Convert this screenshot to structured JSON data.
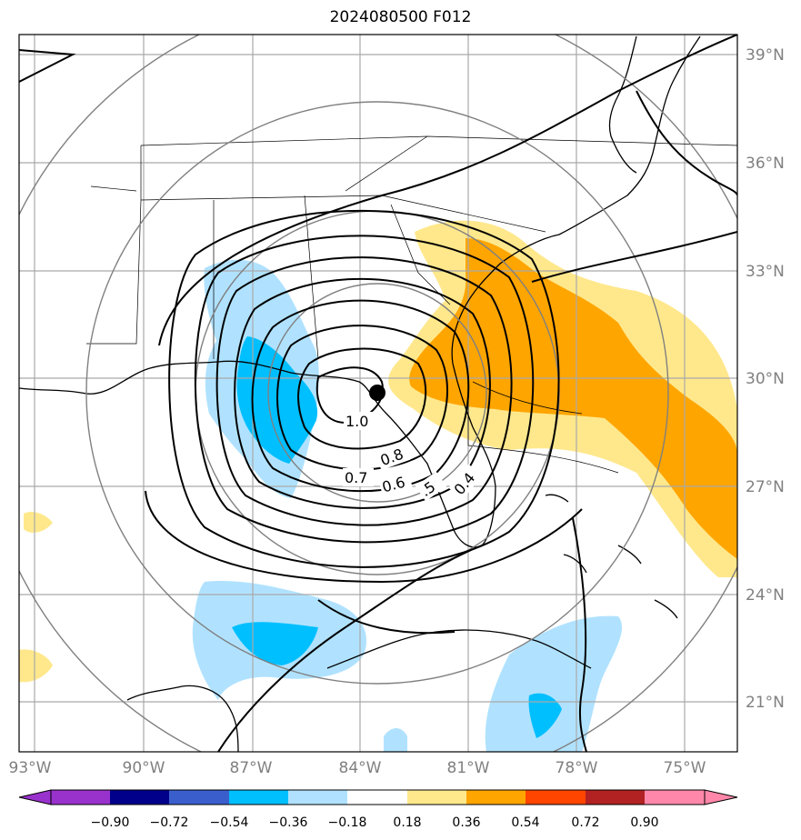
{
  "title": "2024080500 F012",
  "map": {
    "lon_labels": [
      "93°W",
      "90°W",
      "87°W",
      "84°W",
      "81°W",
      "78°W",
      "75°W"
    ],
    "lat_labels": [
      "39°N",
      "36°N",
      "33°N",
      "30°N",
      "27°N",
      "24°N",
      "21°N"
    ],
    "contour_labels": [
      "1.0",
      "0.8",
      "0.7",
      "0.6",
      ".5",
      "0.4"
    ],
    "center_marker": "storm-center-dot"
  },
  "colorbar": {
    "labels": [
      "−0.90",
      "−0.72",
      "−0.54",
      "−0.36",
      "−0.18",
      "0.18",
      "0.36",
      "0.54",
      "0.72",
      "0.90"
    ],
    "colors": [
      "#9932cc",
      "#00008b",
      "#3a5fcd",
      "#00bfff",
      "#b0e2ff",
      "#ffffff",
      "#ffe88c",
      "#ffa500",
      "#ff4500",
      "#b22222",
      "#ff88aa"
    ],
    "under_color": "#9932cc",
    "over_color": "#ff88aa"
  },
  "colors": {
    "grid": "#a9a9a9",
    "range_rings": "#808080",
    "contours": "#000000",
    "neg_light": "#b0e2ff",
    "neg_mid": "#00bfff",
    "pos_light": "#ffe88c",
    "pos_mid": "#ffa500"
  }
}
